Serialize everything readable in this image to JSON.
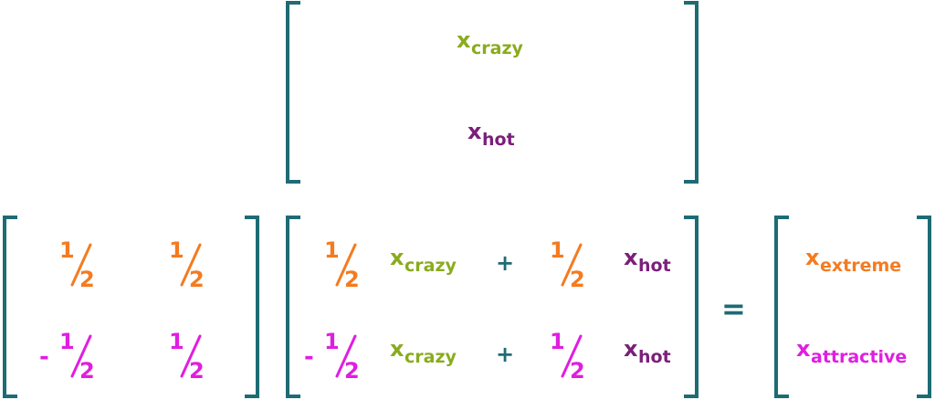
{
  "top_vector": [
    {
      "base": "x",
      "sub": "crazy"
    },
    {
      "base": "x",
      "sub": "hot"
    }
  ],
  "weights": [
    [
      {
        "num": "1",
        "den": "2"
      },
      {
        "num": "1",
        "den": "2"
      }
    ],
    [
      {
        "sign": "-",
        "num": "1",
        "den": "2"
      },
      {
        "num": "1",
        "den": "2"
      }
    ]
  ],
  "product": [
    [
      {
        "num": "1",
        "den": "2"
      },
      {
        "base": "x",
        "sub": "crazy"
      },
      "+",
      {
        "num": "1",
        "den": "2"
      },
      {
        "base": "x",
        "sub": "hot"
      }
    ],
    [
      {
        "sign": "-",
        "num": "1",
        "den": "2"
      },
      {
        "base": "x",
        "sub": "crazy"
      },
      "+",
      {
        "num": "1",
        "den": "2"
      },
      {
        "base": "x",
        "sub": "hot"
      }
    ]
  ],
  "equals": "=",
  "result": [
    {
      "base": "x",
      "sub": "extreme"
    },
    {
      "base": "x",
      "sub": "attractive"
    }
  ]
}
